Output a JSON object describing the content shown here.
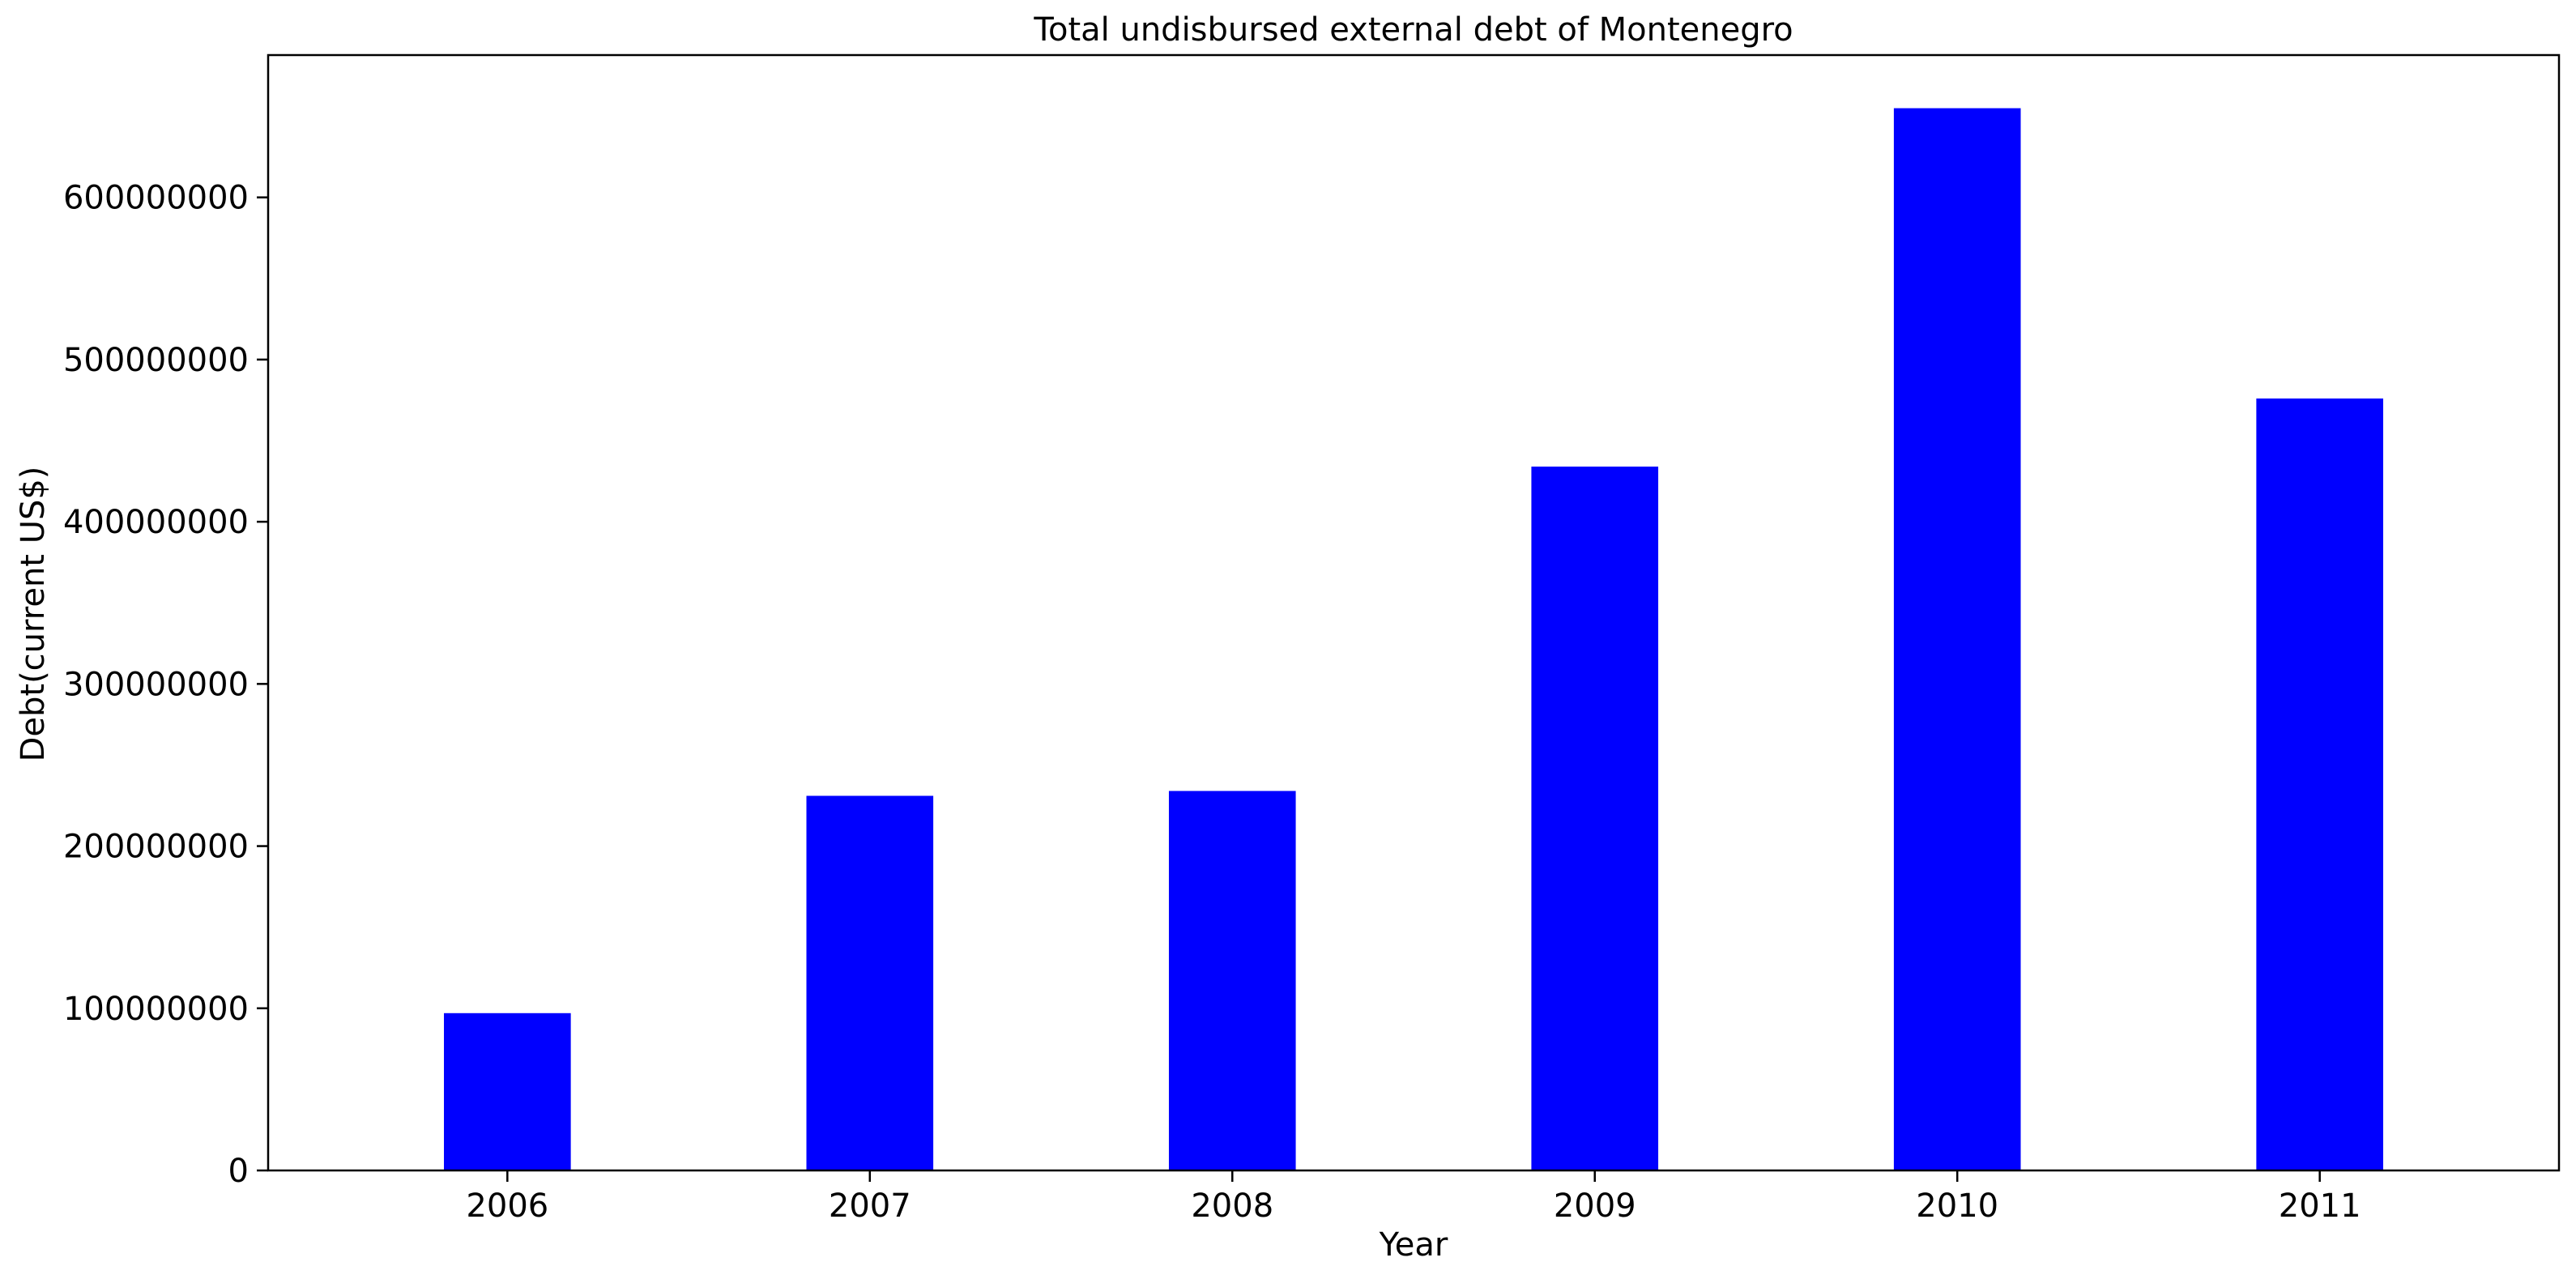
{
  "chart_data": {
    "type": "bar",
    "title": "Total undisbursed external debt of Montenegro",
    "xlabel": "Year",
    "ylabel": "Debt(current US$)",
    "categories": [
      "2006",
      "2007",
      "2008",
      "2009",
      "2010",
      "2011"
    ],
    "values": [
      97000000,
      231000000,
      234000000,
      434000000,
      655000000,
      476000000
    ],
    "ylim": [
      0,
      687750000
    ],
    "yticks": [
      0,
      100000000,
      200000000,
      300000000,
      400000000,
      500000000,
      600000000
    ],
    "ytick_labels": [
      "0",
      "100000000",
      "200000000",
      "300000000",
      "400000000",
      "500000000",
      "600000000"
    ],
    "grid": false,
    "legend": "none",
    "bar_color": "#0000ff"
  }
}
